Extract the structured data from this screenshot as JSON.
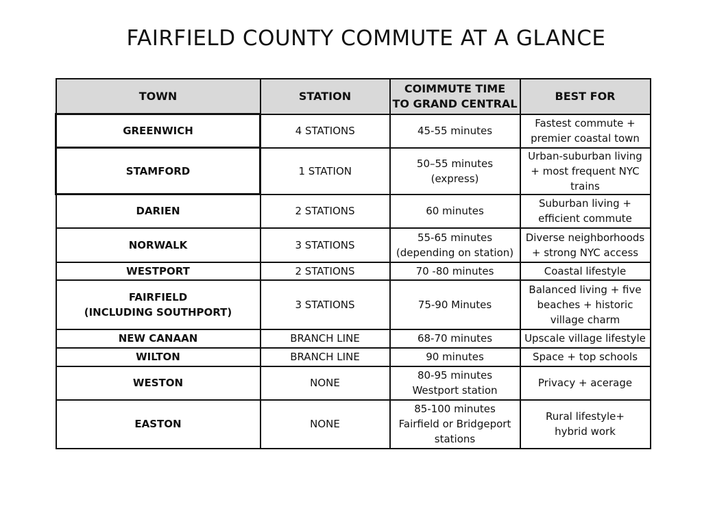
{
  "title": "FAIRFIELD COUNTY COMMUTE AT A GLANCE",
  "table": {
    "headers": [
      "TOWN",
      "STATION",
      "COIMMUTE TIME\nTO GRAND CENTRAL",
      "BEST FOR"
    ],
    "rows": [
      {
        "town": "GREENWICH",
        "station": "4 STATIONS",
        "time": "45-55 minutes",
        "best": "Fastest commute + premier coastal town"
      },
      {
        "town": "STAMFORD",
        "station": "1 STATION",
        "time": "50–55 minutes (express)",
        "best": "Urban-suburban living + most frequent NYC trains"
      },
      {
        "town": "DARIEN",
        "station": "2 STATIONS",
        "time": "60 minutes",
        "best": "Suburban living + efficient commute"
      },
      {
        "town": "NORWALK",
        "station": "3 STATIONS",
        "time": "55-65 minutes (depending on station)",
        "best": "Diverse neighborhoods + strong NYC access"
      },
      {
        "town": "WESTPORT",
        "station": "2 STATIONS",
        "time": "70 -80 minutes",
        "best": "Coastal lifestyle"
      },
      {
        "town": "FAIRFIELD\n(INCLUDING SOUTHPORT)",
        "station": "3 STATIONS",
        "time": "75-90 Minutes",
        "best": "Balanced living + five beaches + historic village charm"
      },
      {
        "town": "NEW CANAAN",
        "station": "BRANCH LINE",
        "time": "68-70 minutes",
        "best": "Upscale village lifestyle"
      },
      {
        "town": "WILTON",
        "station": "BRANCH LINE",
        "time": "90 minutes",
        "best": "Space + top schools"
      },
      {
        "town": "WESTON",
        "station": "NONE",
        "time": "80-95  minutes\nWestport station",
        "best": "Privacy + acerage"
      },
      {
        "town": "EASTON",
        "station": "NONE",
        "time": "85-100 minutes\nFairfield or Bridgeport stations",
        "best": "Rural lifestyle+\nhybrid work"
      }
    ]
  }
}
